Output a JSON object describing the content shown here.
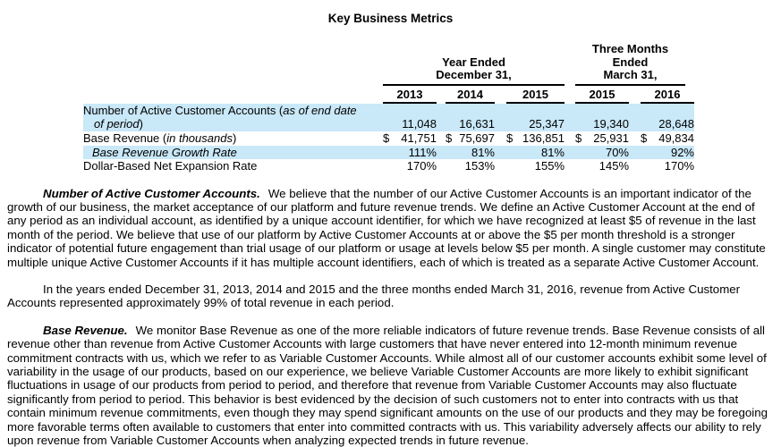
{
  "page": {
    "title": "Key Business Metrics"
  },
  "colors": {
    "row_highlight": "#c9e8f8"
  },
  "table": {
    "group_headers": [
      {
        "lines": [
          "Year Ended",
          "December 31,"
        ]
      },
      {
        "lines": [
          "Three Months",
          "Ended",
          "March 31,"
        ]
      }
    ],
    "columns": [
      "2013",
      "2014",
      "2015",
      "2015",
      "2016"
    ],
    "rows": [
      {
        "label": {
          "regular1": "Number of Active Customer Accounts (",
          "italic1": "as of end date",
          "italic2": "of period",
          "regular2": ")"
        },
        "currency": "",
        "values": [
          "11,048",
          "16,631",
          "25,347",
          "19,340",
          "28,648"
        ]
      },
      {
        "label": {
          "regular1": "Base Revenue (",
          "italic1": "in thousands",
          "regular2": ")"
        },
        "currency": "$",
        "values": [
          "41,751",
          "75,697",
          "136,851",
          "25,931",
          "49,834"
        ]
      },
      {
        "label": {
          "italic1": "Base Revenue Growth Rate"
        },
        "currency": "",
        "values": [
          "111%",
          "81%",
          "81%",
          "70%",
          "92%"
        ]
      },
      {
        "label": {
          "regular1": "Dollar-Based Net Expansion Rate"
        },
        "currency": "",
        "values": [
          "170%",
          "153%",
          "155%",
          "145%",
          "170%"
        ]
      }
    ]
  },
  "paragraphs": [
    {
      "lead": "Number of Active Customer Accounts.",
      "text": "We believe that the number of our Active Customer Accounts is an important indicator of the growth of our business, the market acceptance of our platform and future revenue trends. We define an Active Customer Account at the end of any period as an individual account, as identified by a unique account identifier, for which we have recognized at least $5 of revenue in the last month of the period. We believe that use of our platform by Active Customer Accounts at or above the $5 per month threshold is a stronger indicator of potential future engagement than trial usage of our platform or usage at levels below $5 per month. A single customer may constitute multiple unique Active Customer Accounts if it has multiple account identifiers, each of which is treated as a separate Active Customer Account."
    },
    {
      "lead": "",
      "text": "In the years ended December 31, 2013, 2014 and 2015 and the three months ended March 31, 2016, revenue from Active Customer Accounts represented approximately 99% of total revenue in each period."
    },
    {
      "lead": "Base Revenue.",
      "text": "We monitor Base Revenue as one of the more reliable indicators of future revenue trends. Base Revenue consists of all revenue other than revenue from Active Customer Accounts with large customers that have never entered into 12-month minimum revenue commitment contracts with us, which we refer to as Variable Customer Accounts. While almost all of our customer accounts exhibit some level of variability in the usage of our products, based on our experience, we believe Variable Customer Accounts are more likely to exhibit significant fluctuations in usage of our products from period to period, and therefore that revenue from Variable Customer Accounts may also fluctuate significantly from period to period. This behavior is best evidenced by the decision of such customers not to enter into contracts with us that contain minimum revenue commitments, even though they may spend significant amounts on the use of our products and they may be foregoing more favorable terms often available to customers that enter into committed contracts with us. This variability adversely affects our ability to rely upon revenue from Variable Customer Accounts when analyzing expected trends in future revenue."
    }
  ]
}
